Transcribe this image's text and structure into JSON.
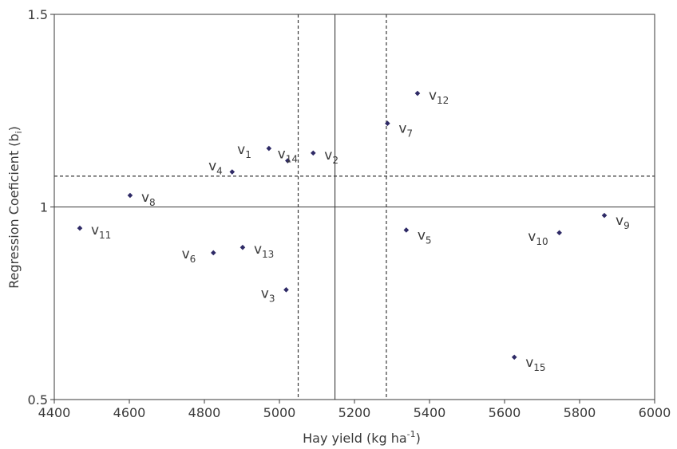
{
  "chart_data": {
    "type": "scatter",
    "xlabel": "Hay yield (kg ha",
    "xlabel_sup": "-1",
    "xlabel_close": ")",
    "ylabel": "Regression Coeficient  (b",
    "ylabel_sub": "i",
    "ylabel_close": ")",
    "xlim": [
      4400,
      6000
    ],
    "ylim": [
      0.5,
      1.5
    ],
    "xticks": [
      4400,
      4600,
      4800,
      5000,
      5200,
      5400,
      5600,
      5800,
      6000
    ],
    "yticks": [
      {
        "value": 0.5,
        "label": "0.5"
      },
      {
        "value": 1.0,
        "label": "1"
      },
      {
        "value": 1.5,
        "label": "1.5"
      }
    ],
    "grid": false,
    "reference_lines": [
      {
        "axis": "x",
        "value": 5148,
        "style": "solid"
      },
      {
        "axis": "x",
        "value": 5050,
        "style": "dashed"
      },
      {
        "axis": "x",
        "value": 5285,
        "style": "dashed"
      },
      {
        "axis": "y",
        "value": 1.0,
        "style": "solid"
      },
      {
        "axis": "y",
        "value": 1.08,
        "style": "dashed"
      }
    ],
    "marker_color": "#2e2a66",
    "points": [
      {
        "label": "v",
        "sub": "1",
        "x": 4972,
        "y": 1.152,
        "pos": "left"
      },
      {
        "label": "v",
        "sub": "2",
        "x": 5090,
        "y": 1.14,
        "pos": "right"
      },
      {
        "label": "v",
        "sub": "3",
        "x": 5018,
        "y": 0.785,
        "pos": "left-below"
      },
      {
        "label": "v",
        "sub": "4",
        "x": 4874,
        "y": 1.091,
        "pos": "left-above"
      },
      {
        "label": "v",
        "sub": "5",
        "x": 5338,
        "y": 0.94,
        "pos": "right-below"
      },
      {
        "label": "v",
        "sub": "6",
        "x": 4824,
        "y": 0.881,
        "pos": "left"
      },
      {
        "label": "v",
        "sub": "7",
        "x": 5288,
        "y": 1.217,
        "pos": "right-below"
      },
      {
        "label": "v",
        "sub": "8",
        "x": 4602,
        "y": 1.03,
        "pos": "right"
      },
      {
        "label": "v",
        "sub": "9",
        "x": 5866,
        "y": 0.978,
        "pos": "right-below"
      },
      {
        "label": "v",
        "sub": "10",
        "x": 5746,
        "y": 0.933,
        "pos": "left-below"
      },
      {
        "label": "v",
        "sub": "11",
        "x": 4468,
        "y": 0.945,
        "pos": "right"
      },
      {
        "label": "v",
        "sub": "12",
        "x": 5368,
        "y": 1.295,
        "pos": "right"
      },
      {
        "label": "v",
        "sub": "13",
        "x": 4902,
        "y": 0.895,
        "pos": "right"
      },
      {
        "label": "v",
        "sub": "14",
        "x": 5022,
        "y": 1.12,
        "pos": "above"
      },
      {
        "label": "v",
        "sub": "15",
        "x": 5626,
        "y": 0.61,
        "pos": "right-below"
      }
    ]
  }
}
